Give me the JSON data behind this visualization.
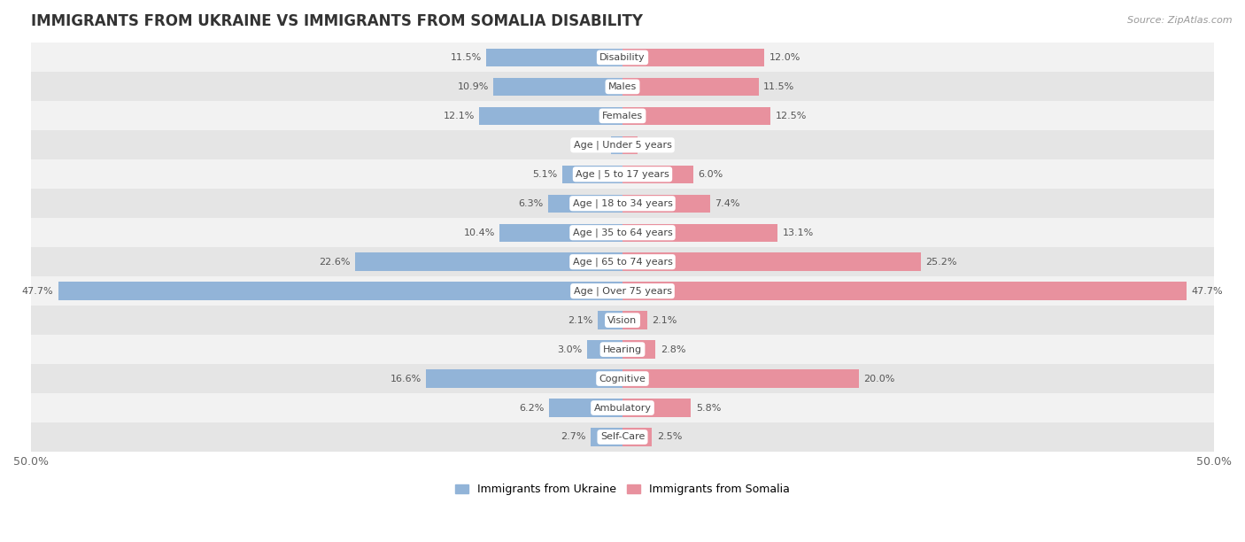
{
  "title": "IMMIGRANTS FROM UKRAINE VS IMMIGRANTS FROM SOMALIA DISABILITY",
  "source": "Source: ZipAtlas.com",
  "categories": [
    "Disability",
    "Males",
    "Females",
    "Age | Under 5 years",
    "Age | 5 to 17 years",
    "Age | 18 to 34 years",
    "Age | 35 to 64 years",
    "Age | 65 to 74 years",
    "Age | Over 75 years",
    "Vision",
    "Hearing",
    "Cognitive",
    "Ambulatory",
    "Self-Care"
  ],
  "ukraine_values": [
    11.5,
    10.9,
    12.1,
    1.0,
    5.1,
    6.3,
    10.4,
    22.6,
    47.7,
    2.1,
    3.0,
    16.6,
    6.2,
    2.7
  ],
  "somalia_values": [
    12.0,
    11.5,
    12.5,
    1.3,
    6.0,
    7.4,
    13.1,
    25.2,
    47.7,
    2.1,
    2.8,
    20.0,
    5.8,
    2.5
  ],
  "ukraine_color": "#92b4d8",
  "somalia_color": "#e8919e",
  "ukraine_label": "Immigrants from Ukraine",
  "somalia_label": "Immigrants from Somalia",
  "max_value": 50.0,
  "bg_light": "#f2f2f2",
  "bg_dark": "#e5e5e5",
  "title_fontsize": 12,
  "label_fontsize": 8,
  "value_fontsize": 8,
  "bar_height": 0.62
}
